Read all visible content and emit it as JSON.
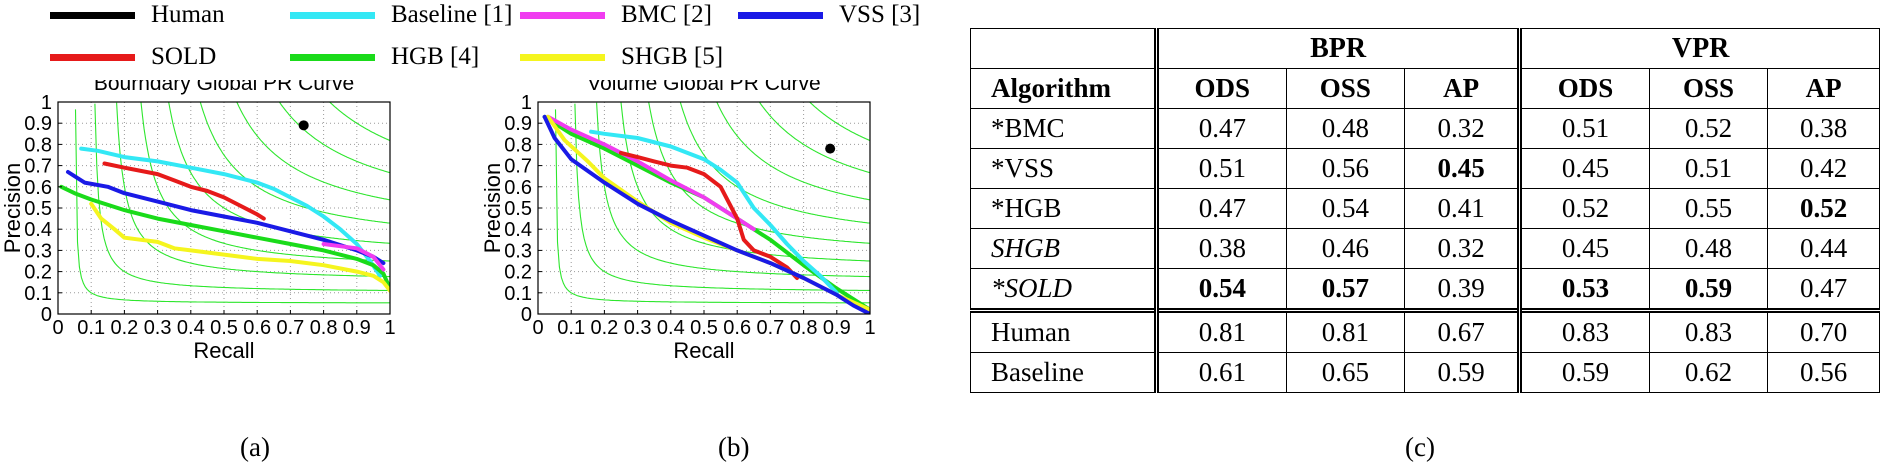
{
  "legend": [
    {
      "label": "Human",
      "color": "#000000"
    },
    {
      "label": "Baseline [1]",
      "color": "#33e8f5"
    },
    {
      "label": "BMC [2]",
      "color": "#f03cf0"
    },
    {
      "label": "VSS [3]",
      "color": "#1a1ae6"
    },
    {
      "label": "SOLD",
      "color": "#e61a1a"
    },
    {
      "label": "HGB [4]",
      "color": "#1adb1a"
    },
    {
      "label": "SHGB [5]",
      "color": "#f5f51e"
    }
  ],
  "captions": {
    "a": "(a)",
    "b": "(b)",
    "c": "(c)"
  },
  "chart_data": [
    {
      "type": "line",
      "title": "Bourndary Global PR Curve",
      "xlabel": "Recall",
      "ylabel": "Precision",
      "xlim": [
        0,
        1
      ],
      "ylim": [
        0,
        1
      ],
      "ticks": [
        "0",
        "0.1",
        "0.2",
        "0.3",
        "0.4",
        "0.5",
        "0.6",
        "0.7",
        "0.8",
        "0.9",
        "1"
      ],
      "grid": true,
      "iso_f_contours": [
        0.1,
        0.2,
        0.3,
        0.4,
        0.5,
        0.6,
        0.7,
        0.8,
        0.9
      ],
      "points": [
        {
          "name": "Human",
          "x": 0.74,
          "y": 0.89
        }
      ],
      "series": [
        {
          "name": "Baseline",
          "x": [
            0.07,
            0.12,
            0.2,
            0.3,
            0.4,
            0.5,
            0.6,
            0.65,
            0.7,
            0.75,
            0.8,
            0.85,
            0.9,
            0.94,
            0.97
          ],
          "y": [
            0.78,
            0.77,
            0.74,
            0.72,
            0.69,
            0.66,
            0.62,
            0.59,
            0.55,
            0.51,
            0.46,
            0.4,
            0.33,
            0.25,
            0.18
          ]
        },
        {
          "name": "SOLD",
          "x": [
            0.14,
            0.2,
            0.3,
            0.35,
            0.4,
            0.45,
            0.5,
            0.55,
            0.6,
            0.62
          ],
          "y": [
            0.71,
            0.69,
            0.66,
            0.63,
            0.6,
            0.58,
            0.55,
            0.51,
            0.47,
            0.45
          ]
        },
        {
          "name": "VSS",
          "x": [
            0.03,
            0.08,
            0.15,
            0.2,
            0.3,
            0.4,
            0.5,
            0.6,
            0.7,
            0.8,
            0.9,
            0.95,
            0.98
          ],
          "y": [
            0.67,
            0.62,
            0.6,
            0.57,
            0.53,
            0.49,
            0.46,
            0.43,
            0.39,
            0.35,
            0.3,
            0.27,
            0.24
          ]
        },
        {
          "name": "HGB",
          "x": [
            0.01,
            0.05,
            0.1,
            0.2,
            0.3,
            0.4,
            0.5,
            0.6,
            0.7,
            0.8,
            0.9,
            0.95,
            0.98,
            1.0
          ],
          "y": [
            0.6,
            0.57,
            0.54,
            0.49,
            0.45,
            0.42,
            0.39,
            0.36,
            0.33,
            0.3,
            0.26,
            0.23,
            0.19,
            0.12
          ]
        },
        {
          "name": "SHGB",
          "x": [
            0.1,
            0.13,
            0.17,
            0.2,
            0.25,
            0.3,
            0.35,
            0.4,
            0.5,
            0.6,
            0.7,
            0.8,
            0.9,
            0.95,
            0.98,
            1.0
          ],
          "y": [
            0.52,
            0.45,
            0.4,
            0.36,
            0.35,
            0.34,
            0.31,
            0.3,
            0.28,
            0.26,
            0.25,
            0.23,
            0.2,
            0.18,
            0.15,
            0.11
          ]
        },
        {
          "name": "BMC",
          "x": [
            0.8,
            0.85,
            0.9,
            0.95,
            0.98
          ],
          "y": [
            0.33,
            0.32,
            0.31,
            0.27,
            0.21
          ]
        }
      ]
    },
    {
      "type": "line",
      "title": "Volume Global PR Curve",
      "xlabel": "Recall",
      "ylabel": "Precision",
      "xlim": [
        0,
        1
      ],
      "ylim": [
        0,
        1
      ],
      "ticks": [
        "0",
        "0.1",
        "0.2",
        "0.3",
        "0.4",
        "0.5",
        "0.6",
        "0.7",
        "0.8",
        "0.9",
        "1"
      ],
      "grid": true,
      "iso_f_contours": [
        0.1,
        0.2,
        0.3,
        0.4,
        0.5,
        0.6,
        0.7,
        0.8,
        0.9
      ],
      "points": [
        {
          "name": "Human",
          "x": 0.88,
          "y": 0.78
        }
      ],
      "series": [
        {
          "name": "HGB",
          "x": [
            0.02,
            0.05,
            0.1,
            0.2,
            0.3,
            0.4,
            0.5,
            0.6,
            0.7,
            0.8,
            0.9,
            1.0
          ],
          "y": [
            0.93,
            0.9,
            0.85,
            0.78,
            0.7,
            0.62,
            0.55,
            0.45,
            0.35,
            0.23,
            0.12,
            0.02
          ]
        },
        {
          "name": "BMC",
          "x": [
            0.03,
            0.1,
            0.2,
            0.3,
            0.4,
            0.5,
            0.6,
            0.65
          ],
          "y": [
            0.93,
            0.87,
            0.8,
            0.72,
            0.63,
            0.55,
            0.45,
            0.4
          ]
        },
        {
          "name": "Baseline",
          "x": [
            0.16,
            0.2,
            0.3,
            0.4,
            0.5,
            0.55,
            0.6,
            0.65,
            0.7,
            0.75,
            0.8,
            0.85,
            0.9
          ],
          "y": [
            0.86,
            0.85,
            0.83,
            0.79,
            0.73,
            0.68,
            0.62,
            0.5,
            0.42,
            0.33,
            0.25,
            0.18,
            0.1
          ]
        },
        {
          "name": "SOLD",
          "x": [
            0.25,
            0.3,
            0.35,
            0.4,
            0.45,
            0.5,
            0.55,
            0.6,
            0.62,
            0.65,
            0.7,
            0.75,
            0.78
          ],
          "y": [
            0.76,
            0.74,
            0.72,
            0.7,
            0.69,
            0.66,
            0.6,
            0.45,
            0.35,
            0.3,
            0.27,
            0.22,
            0.17
          ]
        },
        {
          "name": "SHGB",
          "x": [
            0.03,
            0.08,
            0.15,
            0.2,
            0.3,
            0.4,
            0.5,
            0.6,
            0.7,
            0.8,
            0.9,
            1.0
          ],
          "y": [
            0.93,
            0.82,
            0.72,
            0.64,
            0.53,
            0.43,
            0.36,
            0.3,
            0.24,
            0.17,
            0.09,
            0.02
          ]
        },
        {
          "name": "VSS",
          "x": [
            0.02,
            0.05,
            0.1,
            0.2,
            0.3,
            0.4,
            0.5,
            0.6,
            0.7,
            0.8,
            0.9,
            0.95,
            1.0
          ],
          "y": [
            0.93,
            0.83,
            0.73,
            0.62,
            0.52,
            0.44,
            0.37,
            0.3,
            0.24,
            0.17,
            0.09,
            0.04,
            0.0
          ]
        }
      ]
    },
    {
      "type": "table",
      "groups": [
        "BPR",
        "VPR"
      ],
      "columns": [
        "Algorithm",
        "ODS",
        "OSS",
        "AP",
        "ODS",
        "OSS",
        "AP"
      ],
      "rows": [
        {
          "algo": "*BMC",
          "v": [
            "0.47",
            "0.48",
            "0.32",
            "0.51",
            "0.52",
            "0.38"
          ]
        },
        {
          "algo": "*VSS",
          "v": [
            "0.51",
            "0.56",
            "0.45",
            "0.45",
            "0.51",
            "0.42"
          ]
        },
        {
          "algo": "*HGB",
          "v": [
            "0.47",
            "0.54",
            "0.41",
            "0.52",
            "0.55",
            "0.52"
          ]
        },
        {
          "algo": "SHGB",
          "v": [
            "0.38",
            "0.46",
            "0.32",
            "0.45",
            "0.48",
            "0.44"
          ]
        },
        {
          "algo": "*SOLD",
          "v": [
            "0.54",
            "0.57",
            "0.39",
            "0.53",
            "0.59",
            "0.47"
          ]
        },
        {
          "algo": "Human",
          "v": [
            "0.81",
            "0.81",
            "0.67",
            "0.83",
            "0.83",
            "0.70"
          ]
        },
        {
          "algo": "Baseline",
          "v": [
            "0.61",
            "0.65",
            "0.59",
            "0.59",
            "0.62",
            "0.56"
          ]
        }
      ]
    }
  ]
}
